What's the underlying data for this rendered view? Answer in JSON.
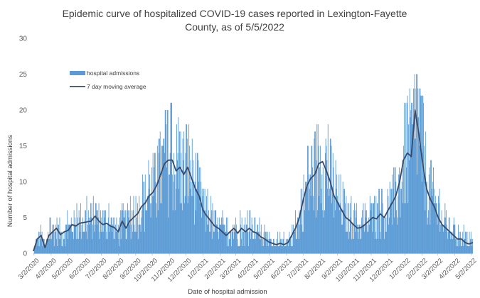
{
  "chart_data": {
    "type": "bar",
    "title": "Epidemic curve of hospitalized COVID-19 cases reported in Lexington-Fayette County, as of 5/5/2022",
    "xlabel": "Date of hospital admission",
    "ylabel": "Number of hospital admissions",
    "ylim": [
      0,
      30
    ],
    "yticks": [
      0,
      5,
      10,
      15,
      20,
      25,
      30
    ],
    "x_range": [
      "3/1/2020",
      "5/5/2022"
    ],
    "xticks": [
      "3/2/2020",
      "4/2/2020",
      "5/2/2020",
      "6/2/2020",
      "7/2/2020",
      "8/2/2020",
      "9/2/2020",
      "10/2/2020",
      "11/2/2020",
      "12/2/2020",
      "1/2/2021",
      "2/2/2021",
      "3/2/2021",
      "4/2/2021",
      "5/2/2021",
      "6/2/2021",
      "7/2/2021",
      "8/2/2021",
      "9/2/2021",
      "10/2/2021",
      "11/2/2021",
      "12/2/2021",
      "1/2/2022",
      "2/2/2022",
      "3/2/2022",
      "4/2/2022",
      "5/2/2022"
    ],
    "grid": false,
    "legend_position": "top-left",
    "colors": {
      "bars": "#5b9bd5",
      "line": "#3a4a66",
      "text": "#404040"
    },
    "series": [
      {
        "name": "hospital admissions",
        "type": "bar",
        "frequency": "daily",
        "start": "3/1/2020",
        "end": "5/5/2022",
        "note_values_weekly_level": true,
        "values": [
          0.3,
          2.0,
          2.5,
          0.8,
          2.5,
          3.0,
          3.5,
          2.6,
          3.0,
          3.2,
          4.0,
          3.8,
          4.2,
          4.3,
          4.4,
          4.5,
          5.2,
          4.5,
          4.0,
          4.2,
          3.8,
          3.6,
          3.0,
          4.5,
          3.5,
          4.5,
          5.0,
          5.5,
          6.5,
          7.0,
          8.0,
          8.5,
          9.5,
          11.0,
          12.5,
          13.0,
          13.0,
          11.5,
          12.0,
          11.0,
          12.0,
          10.5,
          9.0,
          8.0,
          6.0,
          5.2,
          4.5,
          3.8,
          3.5,
          3.0,
          2.5,
          3.0,
          3.5,
          2.8,
          3.5,
          3.0,
          3.5,
          3.0,
          2.8,
          2.3,
          2.0,
          1.6,
          1.4,
          1.2,
          1.4,
          1.2,
          1.5,
          2.5,
          3.5,
          5.0,
          7.5,
          9.5,
          10.5,
          11.0,
          12.5,
          12.8,
          11.5,
          10.0,
          8.0,
          7.0,
          6.0,
          5.0,
          4.6,
          4.0,
          3.5,
          3.6,
          4.0,
          4.5,
          5.0,
          4.8,
          5.5,
          5.0,
          6.0,
          7.0,
          8.0,
          10.0,
          13.0,
          14.0,
          13.5,
          20.0,
          16.5,
          12.5,
          9.0,
          7.5,
          6.5,
          5.0,
          4.0,
          3.5,
          3.0,
          2.5,
          2.0,
          2.0,
          1.5,
          1.3,
          1.5
        ]
      },
      {
        "name": "7 day moving average",
        "type": "line",
        "frequency": "weekly",
        "start": "3/1/2020",
        "end": "5/5/2022",
        "values": [
          0.3,
          2.0,
          2.5,
          0.8,
          2.5,
          3.0,
          3.5,
          2.6,
          3.0,
          3.2,
          4.0,
          3.8,
          4.2,
          4.3,
          4.4,
          4.5,
          5.2,
          4.5,
          4.0,
          4.2,
          3.8,
          3.6,
          3.0,
          4.5,
          3.5,
          4.5,
          5.0,
          5.5,
          6.5,
          7.0,
          8.0,
          8.5,
          9.5,
          11.0,
          12.5,
          13.0,
          13.0,
          11.5,
          12.0,
          11.0,
          12.0,
          10.5,
          9.0,
          8.0,
          6.0,
          5.2,
          4.5,
          3.8,
          3.5,
          3.0,
          2.5,
          3.0,
          3.5,
          2.8,
          3.5,
          3.0,
          3.5,
          3.0,
          2.8,
          2.3,
          2.0,
          1.6,
          1.4,
          1.2,
          1.4,
          1.2,
          1.5,
          2.5,
          3.5,
          5.0,
          7.5,
          9.5,
          10.5,
          11.0,
          12.5,
          12.8,
          11.5,
          10.0,
          8.0,
          7.0,
          6.0,
          5.0,
          4.6,
          4.0,
          3.5,
          3.6,
          4.0,
          4.5,
          5.0,
          4.8,
          5.5,
          5.0,
          6.0,
          7.0,
          8.0,
          10.0,
          13.0,
          14.0,
          13.5,
          20.0,
          16.5,
          12.5,
          9.0,
          7.5,
          6.5,
          5.0,
          4.0,
          3.5,
          3.0,
          2.5,
          2.0,
          2.0,
          1.5,
          1.3,
          1.5
        ]
      }
    ]
  }
}
